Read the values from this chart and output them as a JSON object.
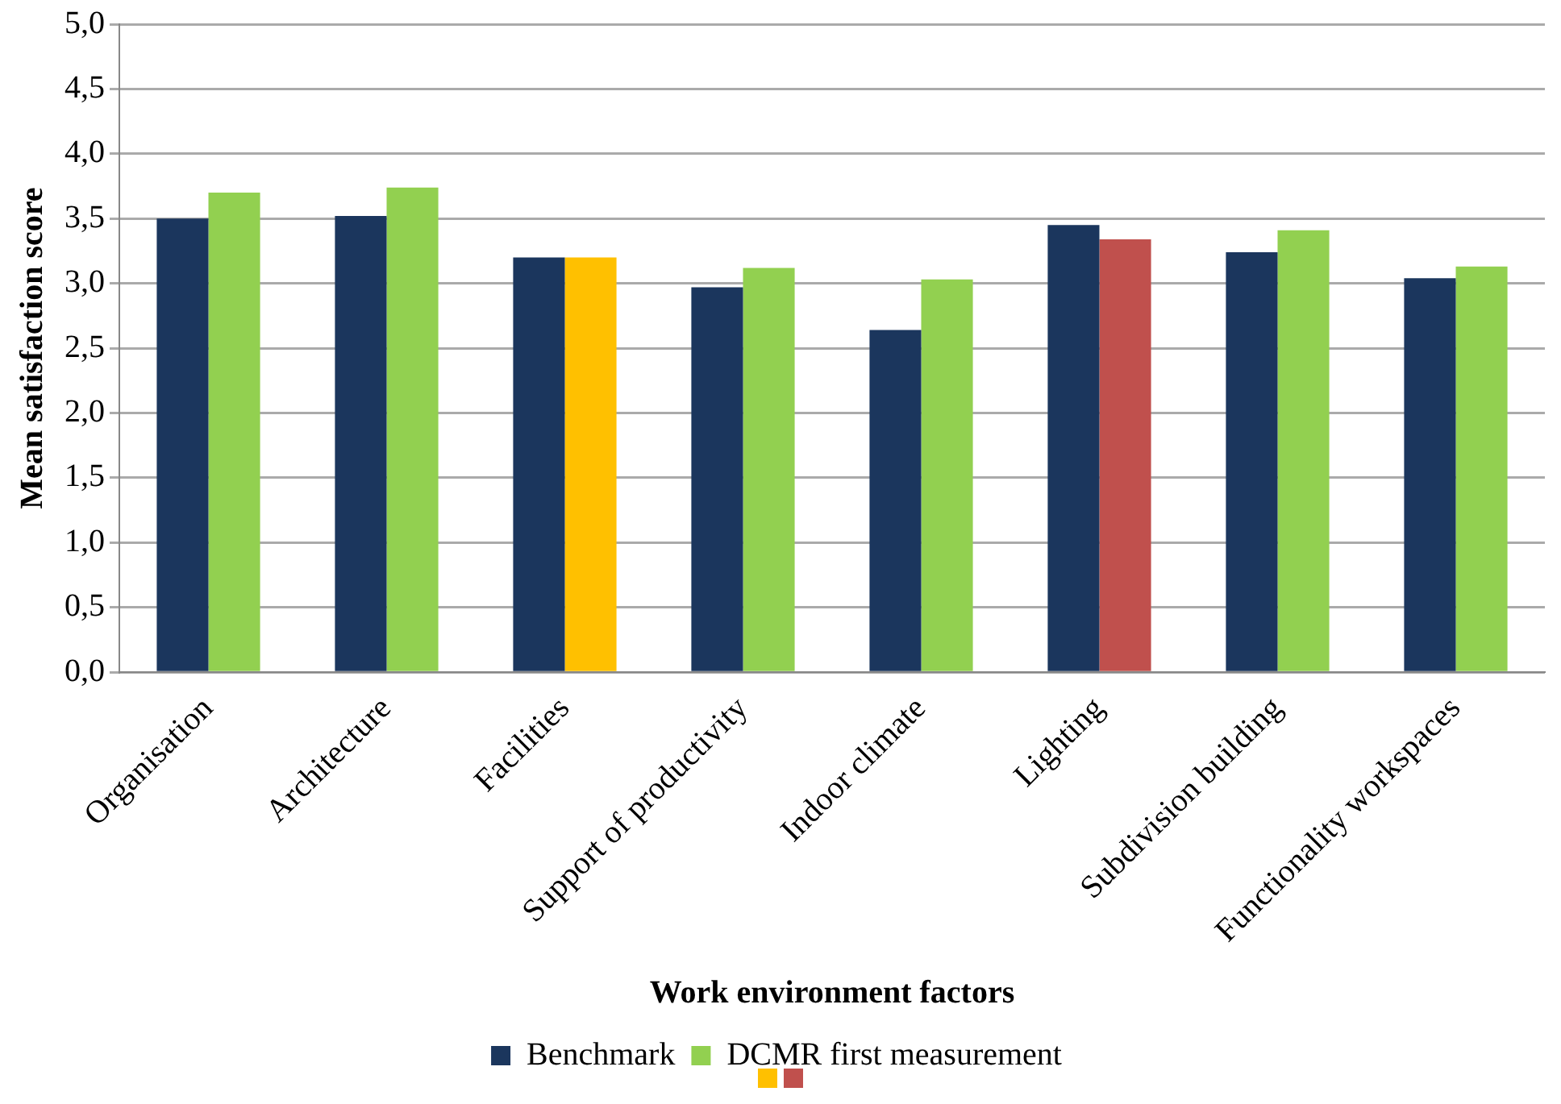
{
  "chart_data": {
    "type": "bar",
    "xlabel": "Work environment factors",
    "ylabel": "Mean satisfaction score",
    "categories": [
      "Organisation",
      "Architecture",
      "Facilities",
      "Support of productivity",
      "Indoor climate",
      "Lighting",
      "Subdivision building",
      "Functionality workspaces"
    ],
    "series": [
      {
        "name": "Benchmark",
        "color": "#1b365d",
        "values": [
          3.5,
          3.52,
          3.2,
          2.97,
          2.64,
          3.45,
          3.24,
          3.04
        ]
      },
      {
        "name": "DCMR first measurement",
        "color": "#92d050",
        "colors": [
          "#92d050",
          "#92d050",
          "#ffc000",
          "#92d050",
          "#92d050",
          "#c0504d",
          "#92d050",
          "#92d050"
        ],
        "values": [
          3.7,
          3.74,
          3.2,
          3.12,
          3.03,
          3.34,
          3.41,
          3.13
        ]
      }
    ],
    "ylim": [
      0,
      5
    ],
    "yticks": [
      {
        "value": 0,
        "label": "0,0"
      },
      {
        "value": 0.5,
        "label": "0,5"
      },
      {
        "value": 1,
        "label": "1,0"
      },
      {
        "value": 1.5,
        "label": "1,5"
      },
      {
        "value": 2,
        "label": "2,0"
      },
      {
        "value": 2.5,
        "label": "2,5"
      },
      {
        "value": 3,
        "label": "3,0"
      },
      {
        "value": 3.5,
        "label": "3,5"
      },
      {
        "value": 4,
        "label": "4,0"
      },
      {
        "value": 4.5,
        "label": "4,5"
      },
      {
        "value": 5,
        "label": "5,0"
      }
    ],
    "grid": "y",
    "legend": "bottom"
  }
}
